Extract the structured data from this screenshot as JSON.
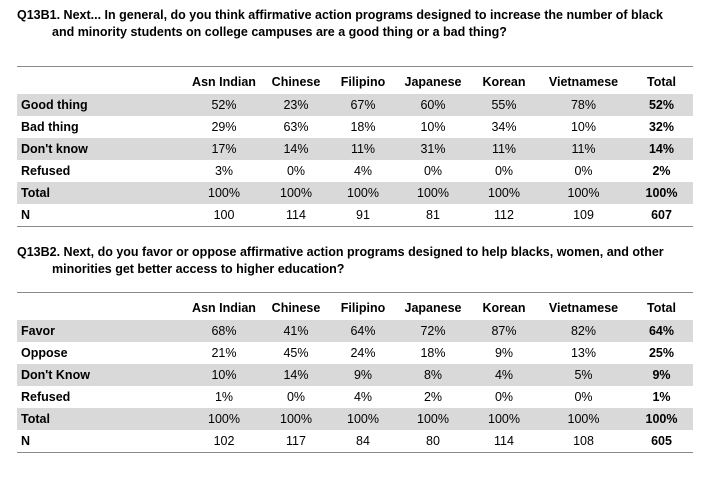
{
  "q1": {
    "line1": "Q13B1. Next... In general, do you think affirmative action programs designed to increase the number of black",
    "line2": "and minority students on college campuses are a good thing or a bad thing?",
    "headers": [
      "Asn Indian",
      "Chinese",
      "Filipino",
      "Japanese",
      "Korean",
      "Vietnamese",
      "Total"
    ],
    "rows": [
      {
        "label": "Good thing",
        "values": [
          "52%",
          "23%",
          "67%",
          "60%",
          "55%",
          "78%"
        ],
        "total": "52%"
      },
      {
        "label": "Bad thing",
        "values": [
          "29%",
          "63%",
          "18%",
          "10%",
          "34%",
          "10%"
        ],
        "total": "32%"
      },
      {
        "label": "Don't know",
        "values": [
          "17%",
          "14%",
          "11%",
          "31%",
          "11%",
          "11%"
        ],
        "total": "14%"
      },
      {
        "label": "Refused",
        "values": [
          "3%",
          "0%",
          "4%",
          "0%",
          "0%",
          "0%"
        ],
        "total": "2%"
      },
      {
        "label": "Total",
        "values": [
          "100%",
          "100%",
          "100%",
          "100%",
          "100%",
          "100%"
        ],
        "total": "100%"
      },
      {
        "label": "N",
        "values": [
          "100",
          "114",
          "91",
          "81",
          "112",
          "109"
        ],
        "total": "607"
      }
    ]
  },
  "q2": {
    "line1": "Q13B2. Next, do you favor or oppose affirmative action programs designed to help blacks, women, and other",
    "line2": "minorities get better access to higher education?",
    "headers": [
      "Asn Indian",
      "Chinese",
      "Filipino",
      "Japanese",
      "Korean",
      "Vietnamese",
      "Total"
    ],
    "rows": [
      {
        "label": "Favor",
        "values": [
          "68%",
          "41%",
          "64%",
          "72%",
          "87%",
          "82%"
        ],
        "total": "64%"
      },
      {
        "label": "Oppose",
        "values": [
          "21%",
          "45%",
          "24%",
          "18%",
          "9%",
          "13%"
        ],
        "total": "25%"
      },
      {
        "label": "Don't Know",
        "values": [
          "10%",
          "14%",
          "9%",
          "8%",
          "4%",
          "5%"
        ],
        "total": "9%"
      },
      {
        "label": "Refused",
        "values": [
          "1%",
          "0%",
          "4%",
          "2%",
          "0%",
          "0%"
        ],
        "total": "1%"
      },
      {
        "label": "Total",
        "values": [
          "100%",
          "100%",
          "100%",
          "100%",
          "100%",
          "100%"
        ],
        "total": "100%"
      },
      {
        "label": "N",
        "values": [
          "102",
          "117",
          "84",
          "80",
          "114",
          "108"
        ],
        "total": "605"
      }
    ]
  }
}
